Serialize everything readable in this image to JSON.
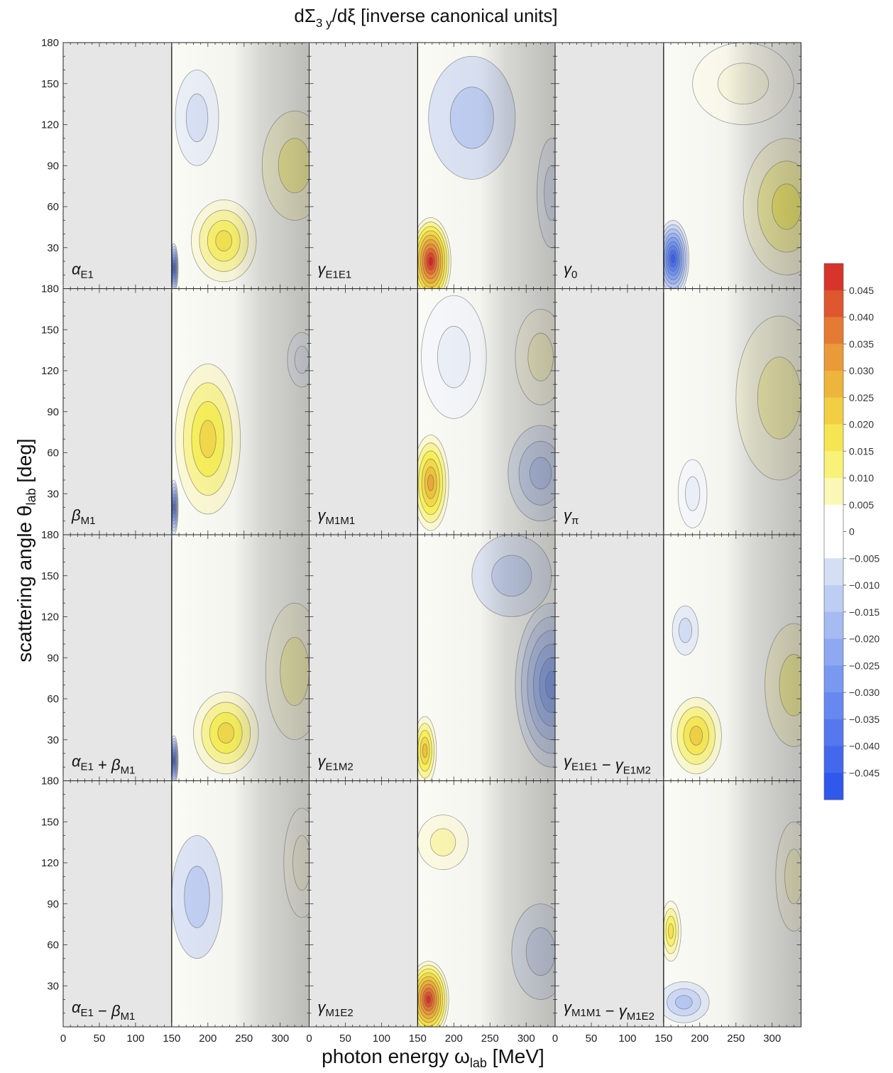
{
  "chart_data": {
    "type": "heatmap",
    "title": "dΣ",
    "title_sub": "3 y",
    "title_tail": "/dξ [inverse canonical units]",
    "xlabel": "photon energy ω",
    "xlabel_sub": "lab",
    "xlabel_unit": " [MeV]",
    "ylabel": "scattering angle θ",
    "ylabel_sub": "lab",
    "ylabel_unit": " [deg]",
    "xlim": [
      0,
      340
    ],
    "ylim": [
      0,
      180
    ],
    "x_threshold": 150,
    "x_ticks": [
      "0",
      "50",
      "100",
      "150",
      "200",
      "250",
      "300"
    ],
    "x_tick_values": [
      0,
      50,
      100,
      150,
      200,
      250,
      300
    ],
    "y_ticks": [
      "30",
      "60",
      "90",
      "120",
      "150",
      "180"
    ],
    "y_tick_values": [
      30,
      60,
      90,
      120,
      150,
      180
    ],
    "grid": false,
    "legend": "right",
    "colorbar": {
      "range": [
        -0.05,
        0.05
      ],
      "ticks": [
        "0.045",
        "0.040",
        "0.035",
        "0.030",
        "0.025",
        "0.020",
        "0.015",
        "0.010",
        "0.005",
        "0",
        "−0.005",
        "−0.010",
        "−0.015",
        "−0.020",
        "−0.025",
        "−0.030",
        "−0.035",
        "−0.040",
        "−0.045"
      ],
      "tick_values": [
        0.045,
        0.04,
        0.035,
        0.03,
        0.025,
        0.02,
        0.015,
        0.01,
        0.005,
        0,
        -0.005,
        -0.01,
        -0.015,
        -0.02,
        -0.025,
        -0.03,
        -0.035,
        -0.04,
        -0.045
      ]
    },
    "panels": [
      {
        "label": [
          [
            "α",
            "E1"
          ]
        ],
        "features": [
          {
            "x": 185,
            "y": 125,
            "sx": 30,
            "sy": 35,
            "v": -0.007
          },
          {
            "x": 222,
            "y": 35,
            "sx": 45,
            "sy": 30,
            "v": 0.018
          },
          {
            "x": 320,
            "y": 90,
            "sx": 45,
            "sy": 40,
            "v": 0.01
          },
          {
            "x": 153,
            "y": 15,
            "sx": 6,
            "sy": 18,
            "v": -0.045
          }
        ]
      },
      {
        "label": [
          [
            "γ",
            "E1E1"
          ]
        ],
        "features": [
          {
            "x": 168,
            "y": 20,
            "sx": 28,
            "sy": 32,
            "v": 0.05
          },
          {
            "x": 225,
            "y": 125,
            "sx": 60,
            "sy": 45,
            "v": -0.012
          },
          {
            "x": 335,
            "y": 70,
            "sx": 20,
            "sy": 40,
            "v": -0.006
          }
        ]
      },
      {
        "label": [
          [
            "γ",
            "0"
          ]
        ],
        "features": [
          {
            "x": 163,
            "y": 22,
            "sx": 22,
            "sy": 28,
            "v": -0.045
          },
          {
            "x": 320,
            "y": 60,
            "sx": 60,
            "sy": 50,
            "v": 0.014
          },
          {
            "x": 260,
            "y": 150,
            "sx": 70,
            "sy": 30,
            "v": 0.004
          }
        ]
      },
      {
        "label": [
          [
            "β",
            "M1"
          ]
        ],
        "features": [
          {
            "x": 200,
            "y": 70,
            "sx": 45,
            "sy": 55,
            "v": 0.02
          },
          {
            "x": 153,
            "y": 20,
            "sx": 6,
            "sy": 20,
            "v": -0.04
          },
          {
            "x": 330,
            "y": 128,
            "sx": 20,
            "sy": 20,
            "v": -0.003
          }
        ]
      },
      {
        "label": [
          [
            "γ",
            "M1M1"
          ]
        ],
        "features": [
          {
            "x": 168,
            "y": 38,
            "sx": 25,
            "sy": 35,
            "v": 0.03
          },
          {
            "x": 320,
            "y": 45,
            "sx": 45,
            "sy": 35,
            "v": -0.014
          },
          {
            "x": 320,
            "y": 130,
            "sx": 35,
            "sy": 35,
            "v": 0.006
          },
          {
            "x": 200,
            "y": 130,
            "sx": 45,
            "sy": 45,
            "v": -0.003
          }
        ]
      },
      {
        "label": [
          [
            "γ",
            "π"
          ]
        ],
        "features": [
          {
            "x": 310,
            "y": 100,
            "sx": 60,
            "sy": 60,
            "v": 0.008
          },
          {
            "x": 190,
            "y": 30,
            "sx": 20,
            "sy": 25,
            "v": -0.003
          }
        ]
      },
      {
        "label": [
          [
            "α",
            "E1"
          ],
          [
            " + "
          ],
          [
            "β",
            "M1"
          ]
        ],
        "features": [
          {
            "x": 225,
            "y": 35,
            "sx": 45,
            "sy": 30,
            "v": 0.02
          },
          {
            "x": 153,
            "y": 15,
            "sx": 6,
            "sy": 18,
            "v": -0.045
          },
          {
            "x": 320,
            "y": 80,
            "sx": 40,
            "sy": 50,
            "v": 0.008
          }
        ]
      },
      {
        "label": [
          [
            "γ",
            "E1M2"
          ]
        ],
        "features": [
          {
            "x": 160,
            "y": 22,
            "sx": 16,
            "sy": 25,
            "v": 0.025
          },
          {
            "x": 335,
            "y": 70,
            "sx": 50,
            "sy": 60,
            "v": -0.028
          },
          {
            "x": 280,
            "y": 150,
            "sx": 55,
            "sy": 30,
            "v": -0.01
          }
        ]
      },
      {
        "label": [
          [
            "γ",
            "E1E1"
          ],
          [
            " − "
          ],
          [
            "γ",
            "E1M2"
          ]
        ],
        "features": [
          {
            "x": 195,
            "y": 33,
            "sx": 35,
            "sy": 28,
            "v": 0.022
          },
          {
            "x": 180,
            "y": 110,
            "sx": 18,
            "sy": 18,
            "v": -0.008
          },
          {
            "x": 330,
            "y": 70,
            "sx": 40,
            "sy": 45,
            "v": 0.01
          }
        ]
      },
      {
        "label": [
          [
            "α",
            "E1"
          ],
          [
            " − "
          ],
          [
            "β",
            "M1"
          ]
        ],
        "features": [
          {
            "x": 185,
            "y": 95,
            "sx": 35,
            "sy": 45,
            "v": -0.012
          },
          {
            "x": 330,
            "y": 120,
            "sx": 25,
            "sy": 40,
            "v": 0.004
          }
        ]
      },
      {
        "label": [
          [
            "γ",
            "M1E2"
          ]
        ],
        "features": [
          {
            "x": 165,
            "y": 20,
            "sx": 28,
            "sy": 28,
            "v": 0.048
          },
          {
            "x": 185,
            "y": 135,
            "sx": 35,
            "sy": 20,
            "v": 0.008
          },
          {
            "x": 320,
            "y": 55,
            "sx": 40,
            "sy": 35,
            "v": -0.008
          }
        ]
      },
      {
        "label": [
          [
            "γ",
            "M1M1"
          ],
          [
            " − "
          ],
          [
            "γ",
            "M1E2"
          ]
        ],
        "features": [
          {
            "x": 178,
            "y": 18,
            "sx": 35,
            "sy": 15,
            "v": -0.014
          },
          {
            "x": 160,
            "y": 70,
            "sx": 14,
            "sy": 22,
            "v": 0.018
          },
          {
            "x": 330,
            "y": 110,
            "sx": 25,
            "sy": 40,
            "v": 0.006
          }
        ]
      }
    ]
  }
}
